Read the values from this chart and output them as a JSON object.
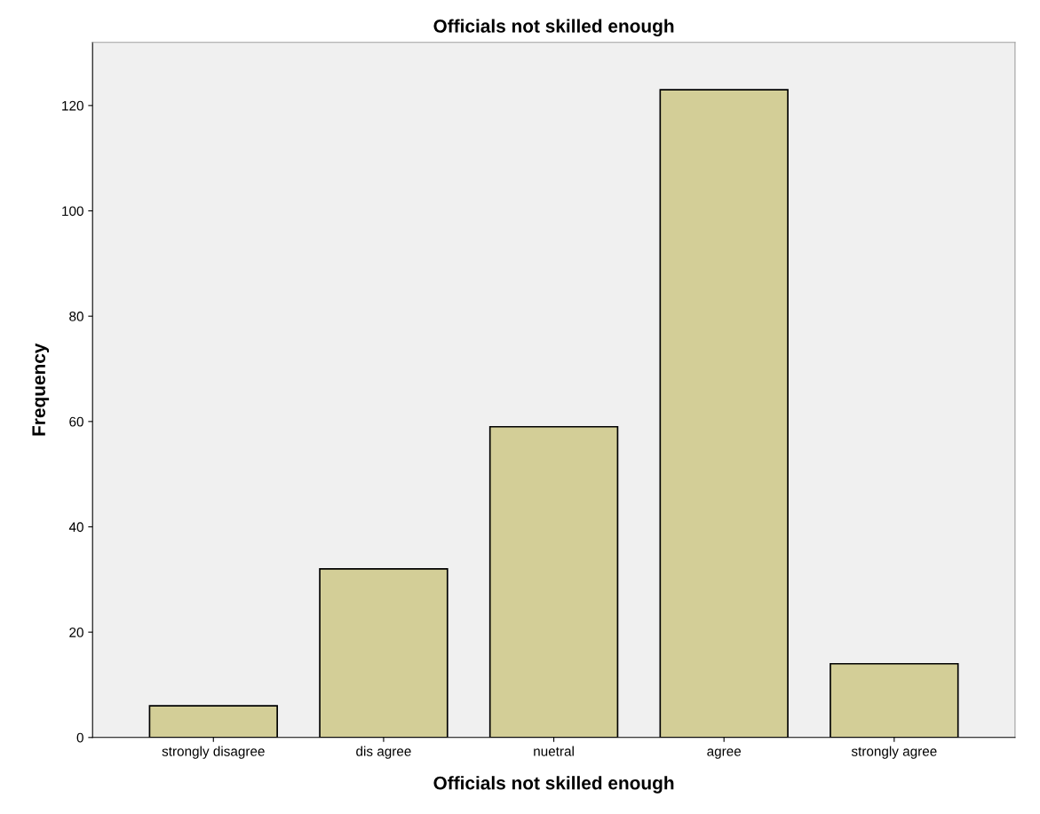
{
  "chart_data": {
    "type": "bar",
    "title": "Officials not skilled enough",
    "xlabel": "Officials not skilled enough",
    "ylabel": "Frequency",
    "categories": [
      "strongly disagree",
      "dis agree",
      "nuetral",
      "agree",
      "strongly agree"
    ],
    "values": [
      6,
      32,
      59,
      123,
      14
    ],
    "color": "#d3ce97",
    "ylim": [
      0,
      132
    ],
    "yticks": [
      0,
      20,
      40,
      60,
      80,
      100,
      120
    ],
    "grid": false
  }
}
